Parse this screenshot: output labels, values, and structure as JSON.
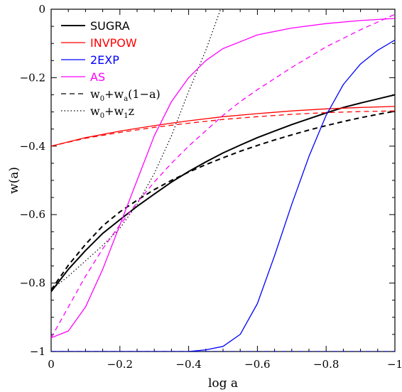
{
  "chart_data": {
    "type": "line",
    "xlabel": "log a",
    "ylabel": "w(a)",
    "xlim": [
      0,
      -1
    ],
    "ylim": [
      -1,
      0
    ],
    "x_ticks": [
      {
        "value": 0,
        "label": "0"
      },
      {
        "value": -0.2,
        "label": "−0.2"
      },
      {
        "value": -0.4,
        "label": "−0.4"
      },
      {
        "value": -0.6,
        "label": "−0.6"
      },
      {
        "value": -0.8,
        "label": "−0.8"
      },
      {
        "value": -1,
        "label": "−1"
      }
    ],
    "y_ticks": [
      {
        "value": 0,
        "label": "0"
      },
      {
        "value": -0.2,
        "label": "−0.2"
      },
      {
        "value": -0.4,
        "label": "−0.4"
      },
      {
        "value": -0.6,
        "label": "−0.6"
      },
      {
        "value": -0.8,
        "label": "−0.8"
      },
      {
        "value": -1,
        "label": "−1"
      }
    ],
    "grid": false,
    "legend_position": "top-left",
    "legend": [
      {
        "label": "SUGRA",
        "color": "#000000",
        "style": "solid",
        "width": 2
      },
      {
        "label": "INVPOW",
        "color": "#ff0000",
        "style": "solid",
        "width": 1.3
      },
      {
        "label": "2EXP",
        "color": "#0000ff",
        "style": "solid",
        "width": 1.3
      },
      {
        "label": "AS",
        "color": "#ff00ff",
        "style": "solid",
        "width": 1.3
      },
      {
        "label": "w_0+w_a(1−a)",
        "color": "#000000",
        "style": "dashed",
        "width": 1.3
      },
      {
        "label": "w_0+w_1z",
        "color": "#000000",
        "style": "dotted",
        "width": 1.3
      }
    ],
    "series": [
      {
        "name": "SUGRA",
        "color": "#000000",
        "style": "solid",
        "width": 2,
        "x": [
          0,
          -0.05,
          -0.1,
          -0.15,
          -0.2,
          -0.25,
          -0.3,
          -0.35,
          -0.4,
          -0.45,
          -0.5,
          -0.55,
          -0.6,
          -0.65,
          -0.7,
          -0.75,
          -0.8,
          -0.85,
          -0.9,
          -0.95,
          -1
        ],
        "y": [
          -0.825,
          -0.76,
          -0.705,
          -0.655,
          -0.615,
          -0.576,
          -0.54,
          -0.505,
          -0.474,
          -0.446,
          -0.42,
          -0.397,
          -0.375,
          -0.356,
          -0.337,
          -0.32,
          -0.303,
          -0.287,
          -0.274,
          -0.262,
          -0.25
        ]
      },
      {
        "name": "SUGRA",
        "color": "#000000",
        "style": "dashed",
        "width": 2,
        "x": [
          0,
          -0.05,
          -0.1,
          -0.15,
          -0.2,
          -0.25,
          -0.3,
          -0.35,
          -0.4,
          -0.45,
          -0.5,
          -0.55,
          -0.6,
          -0.65,
          -0.7,
          -0.75,
          -0.8,
          -0.85,
          -0.9,
          -0.95,
          -1
        ],
        "y": [
          -0.82,
          -0.748,
          -0.687,
          -0.633,
          -0.592,
          -0.558,
          -0.527,
          -0.5,
          -0.476,
          -0.454,
          -0.434,
          -0.415,
          -0.398,
          -0.382,
          -0.367,
          -0.353,
          -0.34,
          -0.328,
          -0.317,
          -0.307,
          -0.298
        ]
      },
      {
        "name": "SUGRA",
        "color": "#000000",
        "style": "dotted",
        "width": 1.2,
        "x": [
          0,
          -0.05,
          -0.1,
          -0.15,
          -0.2,
          -0.25,
          -0.3,
          -0.35,
          -0.4,
          -0.45,
          -0.5,
          -0.53
        ],
        "y": [
          -0.82,
          -0.78,
          -0.735,
          -0.69,
          -0.64,
          -0.57,
          -0.48,
          -0.37,
          -0.24,
          -0.12,
          0.02,
          0.1
        ]
      },
      {
        "name": "INVPOW",
        "color": "#ff0000",
        "style": "solid",
        "width": 1.3,
        "x": [
          0,
          -0.1,
          -0.2,
          -0.3,
          -0.4,
          -0.5,
          -0.6,
          -0.7,
          -0.8,
          -0.9,
          -1
        ],
        "y": [
          -0.4,
          -0.375,
          -0.356,
          -0.34,
          -0.326,
          -0.314,
          -0.305,
          -0.297,
          -0.291,
          -0.287,
          -0.284
        ]
      },
      {
        "name": "INVPOW",
        "color": "#ff0000",
        "style": "dashed",
        "width": 1.3,
        "x": [
          0,
          -0.1,
          -0.2,
          -0.3,
          -0.4,
          -0.5,
          -0.6,
          -0.7,
          -0.8,
          -0.9,
          -1
        ],
        "y": [
          -0.4,
          -0.377,
          -0.36,
          -0.345,
          -0.333,
          -0.322,
          -0.314,
          -0.307,
          -0.302,
          -0.299,
          -0.297
        ]
      },
      {
        "name": "2EXP",
        "color": "#0000ff",
        "style": "solid",
        "width": 1.3,
        "x": [
          0,
          -0.4,
          -0.45,
          -0.5,
          -0.55,
          -0.6,
          -0.65,
          -0.7,
          -0.75,
          -0.8,
          -0.85,
          -0.9,
          -0.95,
          -1
        ],
        "y": [
          -1,
          -1,
          -0.995,
          -0.985,
          -0.95,
          -0.86,
          -0.72,
          -0.57,
          -0.43,
          -0.31,
          -0.22,
          -0.16,
          -0.12,
          -0.09
        ]
      },
      {
        "name": "2EXP",
        "color": "#0000ff",
        "style": "dashed",
        "width": 1.3,
        "x": [
          0,
          -1
        ],
        "y": [
          -1,
          -1
        ]
      },
      {
        "name": "AS",
        "color": "#ff00ff",
        "style": "solid",
        "width": 1.3,
        "x": [
          0,
          -0.05,
          -0.1,
          -0.15,
          -0.2,
          -0.25,
          -0.3,
          -0.35,
          -0.4,
          -0.45,
          -0.5,
          -0.55,
          -0.6,
          -0.7,
          -0.8,
          -0.9,
          -1
        ],
        "y": [
          -0.96,
          -0.94,
          -0.87,
          -0.76,
          -0.63,
          -0.5,
          -0.37,
          -0.27,
          -0.2,
          -0.15,
          -0.115,
          -0.095,
          -0.075,
          -0.055,
          -0.042,
          -0.033,
          -0.027
        ]
      },
      {
        "name": "AS",
        "color": "#ff00ff",
        "style": "dashed",
        "width": 1.3,
        "x": [
          0,
          -0.05,
          -0.1,
          -0.15,
          -0.2,
          -0.25,
          -0.3,
          -0.35,
          -0.4,
          -0.45,
          -0.5,
          -0.55,
          -0.6,
          -0.7,
          -0.8,
          -0.9,
          -1
        ],
        "y": [
          -0.96,
          -0.87,
          -0.78,
          -0.7,
          -0.63,
          -0.565,
          -0.505,
          -0.45,
          -0.4,
          -0.355,
          -0.31,
          -0.27,
          -0.235,
          -0.17,
          -0.11,
          -0.06,
          -0.015
        ]
      }
    ]
  }
}
